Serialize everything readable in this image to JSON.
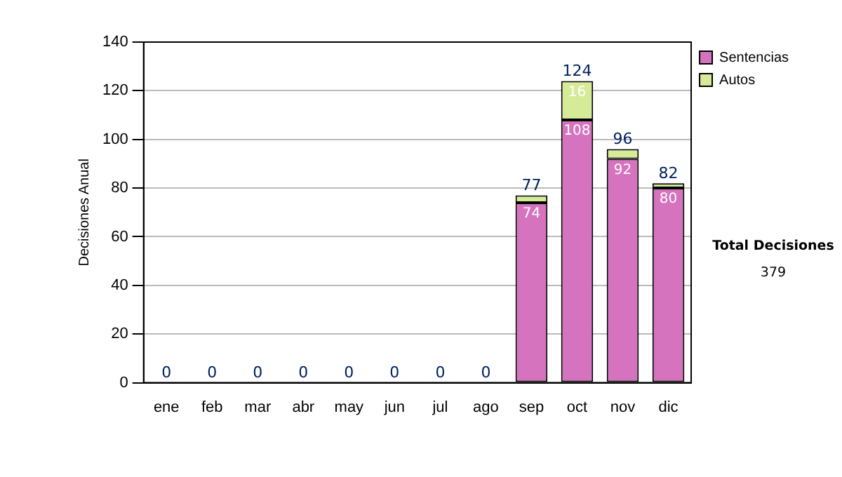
{
  "chart_data": {
    "type": "bar",
    "stacked": true,
    "ylabel": "Decisiones Anual",
    "categories": [
      "ene",
      "feb",
      "mar",
      "abr",
      "may",
      "jun",
      "jul",
      "ago",
      "sep",
      "oct",
      "nov",
      "dic"
    ],
    "series": [
      {
        "name": "Sentencias",
        "color": "#d673be",
        "values": [
          0,
          0,
          0,
          0,
          0,
          0,
          0,
          0,
          74,
          108,
          92,
          80
        ],
        "value_labels": [
          null,
          null,
          null,
          null,
          null,
          null,
          null,
          null,
          "74",
          "108",
          "92",
          "80"
        ]
      },
      {
        "name": "Autos",
        "color": "#d5eb97",
        "values": [
          0,
          0,
          0,
          0,
          0,
          0,
          0,
          0,
          3,
          16,
          4,
          2
        ],
        "value_labels": [
          null,
          null,
          null,
          null,
          null,
          null,
          null,
          null,
          null,
          "16",
          null,
          null
        ]
      }
    ],
    "totals": [
      "0",
      "0",
      "0",
      "0",
      "0",
      "0",
      "0",
      "0",
      "77",
      "124",
      "96",
      "82"
    ],
    "ylim": [
      0,
      140
    ],
    "yticks": [
      0,
      20,
      40,
      60,
      80,
      100,
      120,
      140
    ],
    "grid": "y",
    "legend": "right",
    "annotations": [
      "Total Decisiones",
      "379"
    ]
  }
}
